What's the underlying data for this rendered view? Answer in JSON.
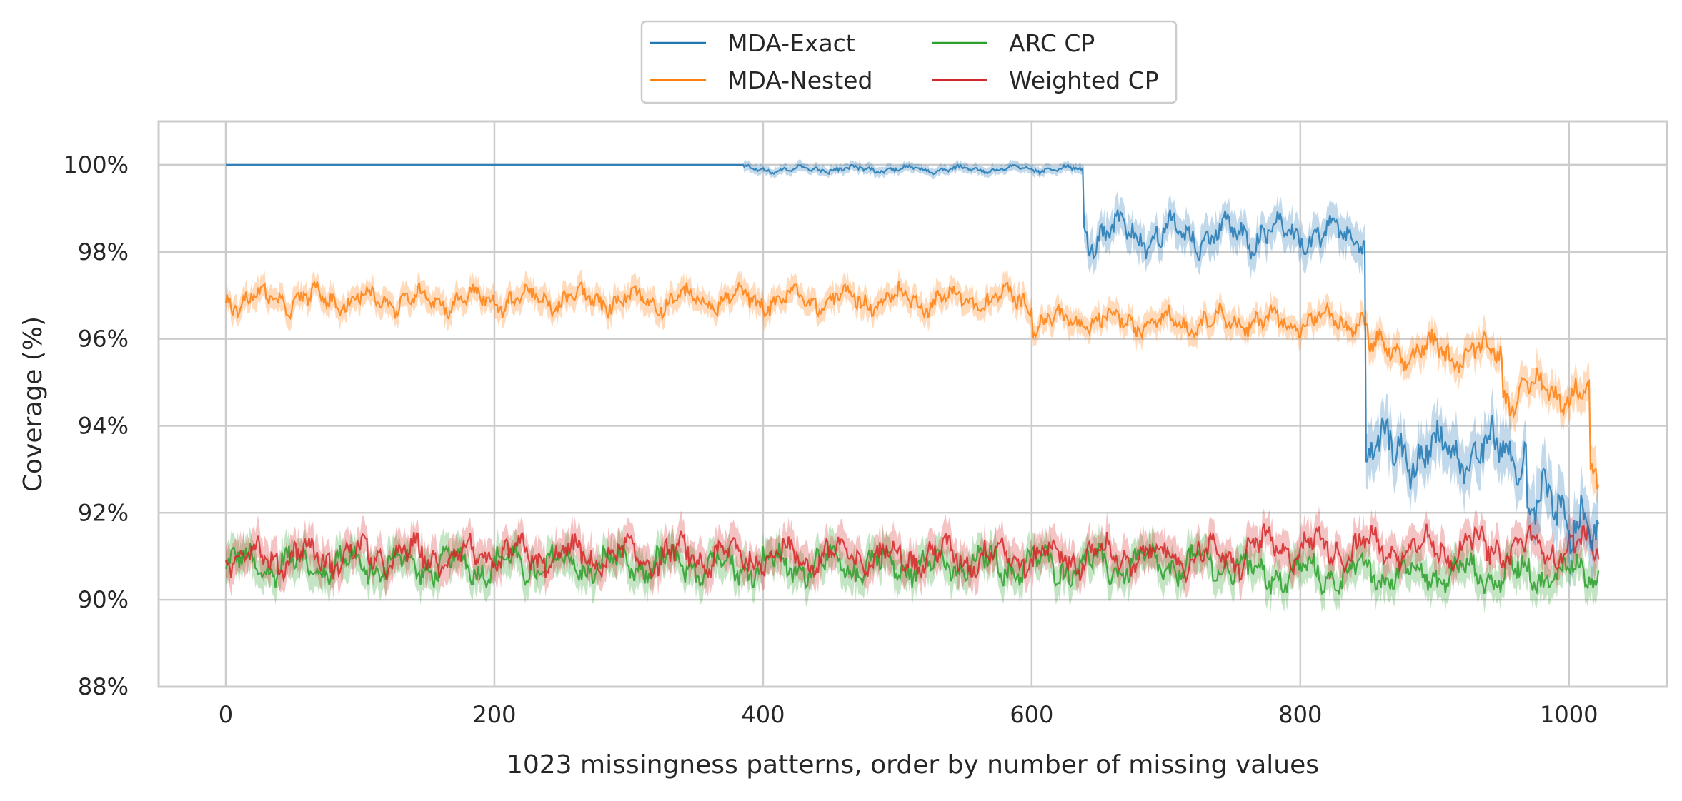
{
  "chart_data": {
    "type": "line",
    "title": "",
    "xlabel": "1023 missingness patterns, order by number of missing values",
    "ylabel": "Coverage (%)",
    "xlim": [
      -50,
      1073
    ],
    "ylim": [
      88,
      101
    ],
    "x_ticks": [
      0,
      200,
      400,
      600,
      800,
      1000
    ],
    "x_tick_labels": [
      "0",
      "200",
      "400",
      "600",
      "800",
      "1000"
    ],
    "y_ticks": [
      88,
      90,
      92,
      94,
      96,
      98,
      100
    ],
    "y_tick_labels": [
      "88%",
      "90%",
      "92%",
      "94%",
      "96%",
      "98%",
      "100%"
    ],
    "grid": true,
    "legend_position": "top-center",
    "n_patterns": 1023,
    "series": [
      {
        "name": "MDA-Exact",
        "color": "#1f77b4",
        "segments": [
          {
            "x_start": 0,
            "x_end": 385,
            "mean": 100.0,
            "band": 0.0
          },
          {
            "x_start": 385,
            "x_end": 638,
            "mean": 99.9,
            "band": 0.1
          },
          {
            "x_start": 639,
            "x_end": 848,
            "mean": 98.4,
            "band": 0.35
          },
          {
            "x_start": 849,
            "x_end": 968,
            "mean": 93.4,
            "band": 0.5
          },
          {
            "x_start": 969,
            "x_end": 1015,
            "mean": 92.0,
            "band": 0.6
          },
          {
            "x_start": 1016,
            "x_end": 1022,
            "mean": 90.9,
            "band": 0.6
          }
        ]
      },
      {
        "name": "MDA-Nested",
        "color": "#ff7f0e",
        "segments": [
          {
            "x_start": 0,
            "x_end": 600,
            "mean": 96.9,
            "band": 0.25
          },
          {
            "x_start": 600,
            "x_end": 850,
            "mean": 96.4,
            "band": 0.25
          },
          {
            "x_start": 850,
            "x_end": 950,
            "mean": 95.7,
            "band": 0.3
          },
          {
            "x_start": 950,
            "x_end": 1015,
            "mean": 94.8,
            "band": 0.35
          },
          {
            "x_start": 1015,
            "x_end": 1022,
            "mean": 92.6,
            "band": 0.4
          }
        ]
      },
      {
        "name": "ARC CP",
        "color": "#2ca02c",
        "segments": [
          {
            "x_start": 0,
            "x_end": 760,
            "mean": 90.8,
            "band": 0.35
          },
          {
            "x_start": 760,
            "x_end": 1022,
            "mean": 90.6,
            "band": 0.35
          }
        ]
      },
      {
        "name": "Weighted CP",
        "color": "#d62728",
        "segments": [
          {
            "x_start": 0,
            "x_end": 760,
            "mean": 91.0,
            "band": 0.35
          },
          {
            "x_start": 760,
            "x_end": 1022,
            "mean": 91.2,
            "band": 0.35
          }
        ]
      }
    ]
  }
}
